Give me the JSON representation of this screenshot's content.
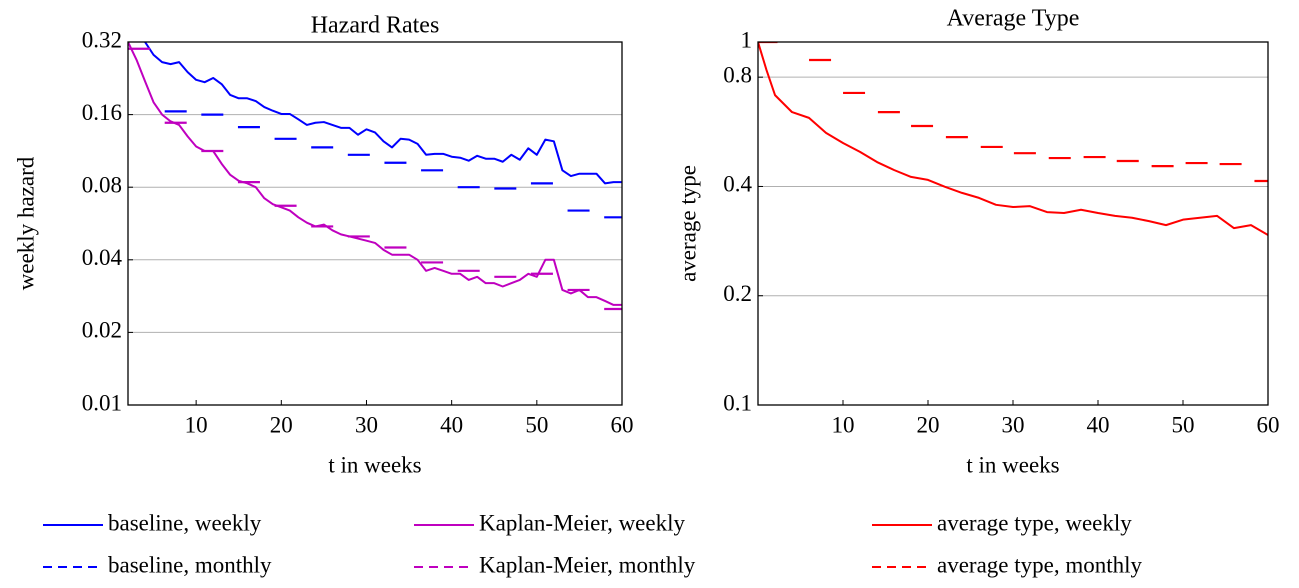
{
  "chart_data": [
    {
      "type": "line",
      "title": "Hazard Rates",
      "xlabel": "t in weeks",
      "ylabel": "weekly hazard",
      "log_y": true,
      "grid": true,
      "xlim": [
        2,
        60
      ],
      "xticks": [
        10,
        20,
        30,
        40,
        50,
        60
      ],
      "ylim": [
        0.01,
        0.32
      ],
      "yticks": [
        0.01,
        0.02,
        0.04,
        0.08,
        0.16,
        0.32
      ],
      "series": [
        {
          "name": "baseline, weekly",
          "color": "#0000ff",
          "style": "solid",
          "x": [
            4,
            5,
            6,
            7,
            8,
            9,
            10,
            11,
            12,
            13,
            14,
            15,
            16,
            17,
            18,
            19,
            20,
            21,
            22,
            23,
            24,
            25,
            26,
            27,
            28,
            29,
            30,
            31,
            32,
            33,
            34,
            35,
            36,
            37,
            38,
            39,
            40,
            41,
            42,
            43,
            44,
            45,
            46,
            47,
            48,
            49,
            50,
            51,
            52,
            53,
            54,
            55,
            56,
            57,
            58,
            59,
            60
          ],
          "values": [
            0.32,
            0.283,
            0.264,
            0.259,
            0.264,
            0.24,
            0.223,
            0.218,
            0.227,
            0.214,
            0.193,
            0.187,
            0.187,
            0.182,
            0.172,
            0.166,
            0.161,
            0.161,
            0.153,
            0.145,
            0.148,
            0.149,
            0.145,
            0.141,
            0.141,
            0.132,
            0.139,
            0.135,
            0.124,
            0.117,
            0.127,
            0.126,
            0.121,
            0.109,
            0.11,
            0.11,
            0.107,
            0.106,
            0.103,
            0.108,
            0.105,
            0.105,
            0.102,
            0.109,
            0.104,
            0.116,
            0.109,
            0.126,
            0.124,
            0.094,
            0.089,
            0.091,
            0.091,
            0.091,
            0.083,
            0.084,
            0.084
          ]
        },
        {
          "name": "baseline, monthly",
          "color": "#0000ff",
          "style": "dashed",
          "x": [
            3.3,
            7.6,
            11.9,
            16.2,
            20.5,
            24.8,
            29.1,
            33.4,
            37.7,
            42,
            46.3,
            50.6,
            54.9,
            59.2
          ],
          "values": [
            null,
            0.165,
            0.16,
            0.142,
            0.127,
            0.117,
            0.109,
            0.101,
            0.094,
            0.08,
            0.079,
            0.083,
            0.064,
            0.06
          ]
        },
        {
          "name": "Kaplan-Meier, weekly",
          "color": "#bf00bf",
          "style": "solid",
          "x": [
            2,
            3,
            4,
            5,
            6,
            7,
            8,
            9,
            10,
            11,
            12,
            13,
            14,
            15,
            16,
            17,
            18,
            19,
            20,
            21,
            22,
            23,
            24,
            25,
            26,
            27,
            28,
            29,
            30,
            31,
            32,
            33,
            34,
            35,
            36,
            37,
            38,
            39,
            40,
            41,
            42,
            43,
            44,
            45,
            46,
            47,
            48,
            49,
            50,
            51,
            52,
            53,
            54,
            55,
            56,
            57,
            58,
            59,
            60
          ],
          "values": [
            0.32,
            0.27,
            0.22,
            0.18,
            0.16,
            0.15,
            0.145,
            0.13,
            0.118,
            0.113,
            0.113,
            0.1,
            0.09,
            0.085,
            0.083,
            0.08,
            0.072,
            0.068,
            0.066,
            0.064,
            0.06,
            0.057,
            0.055,
            0.056,
            0.053,
            0.051,
            0.05,
            0.049,
            0.048,
            0.047,
            0.044,
            0.042,
            0.042,
            0.042,
            0.04,
            0.036,
            0.037,
            0.036,
            0.035,
            0.035,
            0.033,
            0.034,
            0.032,
            0.032,
            0.031,
            0.032,
            0.033,
            0.035,
            0.034,
            0.04,
            0.04,
            0.03,
            0.029,
            0.03,
            0.028,
            0.028,
            0.027,
            0.026,
            0.026
          ]
        },
        {
          "name": "Kaplan-Meier, monthly",
          "color": "#bf00bf",
          "style": "dashed",
          "x": [
            3.3,
            7.6,
            11.9,
            16.2,
            20.5,
            24.8,
            29.1,
            33.4,
            37.7,
            42,
            46.3,
            50.6,
            54.9,
            59.2
          ],
          "values": [
            0.3,
            0.148,
            0.113,
            0.084,
            0.067,
            0.055,
            0.05,
            0.045,
            0.039,
            0.036,
            0.034,
            0.035,
            0.03,
            0.025
          ]
        }
      ]
    },
    {
      "type": "line",
      "title": "Average Type",
      "xlabel": "t in weeks",
      "ylabel": "average type",
      "log_y": true,
      "grid": true,
      "xlim": [
        0,
        60
      ],
      "xticks": [
        10,
        20,
        30,
        40,
        50,
        60
      ],
      "ylim": [
        0.1,
        1
      ],
      "yticks": [
        0.1,
        0.2,
        0.4,
        0.8,
        1
      ],
      "series": [
        {
          "name": "average type, weekly",
          "color": "#ff0000",
          "style": "solid",
          "x": [
            0,
            1,
            2,
            4,
            6,
            8,
            10,
            12,
            14,
            16,
            18,
            20,
            22,
            24,
            26,
            28,
            30,
            32,
            34,
            36,
            38,
            40,
            42,
            44,
            46,
            48,
            50,
            52,
            54,
            56,
            58,
            60
          ],
          "values": [
            1,
            0.837,
            0.714,
            0.641,
            0.618,
            0.562,
            0.527,
            0.498,
            0.467,
            0.444,
            0.425,
            0.417,
            0.399,
            0.384,
            0.372,
            0.356,
            0.351,
            0.353,
            0.34,
            0.338,
            0.345,
            0.338,
            0.332,
            0.328,
            0.321,
            0.313,
            0.324,
            0.328,
            0.332,
            0.307,
            0.313,
            0.294
          ]
        },
        {
          "name": "average type, monthly",
          "color": "#ff0000",
          "style": "dashed",
          "x": [
            1,
            7.3,
            11.3,
            15.4,
            19.3,
            23.4,
            27.5,
            31.4,
            35.5,
            39.6,
            43.5,
            47.6,
            51.6,
            55.6,
            59.7
          ],
          "values": [
            1,
            0.892,
            0.724,
            0.641,
            0.587,
            0.547,
            0.514,
            0.494,
            0.479,
            0.482,
            0.47,
            0.455,
            0.464,
            0.461,
            0.414
          ]
        }
      ]
    }
  ]
}
